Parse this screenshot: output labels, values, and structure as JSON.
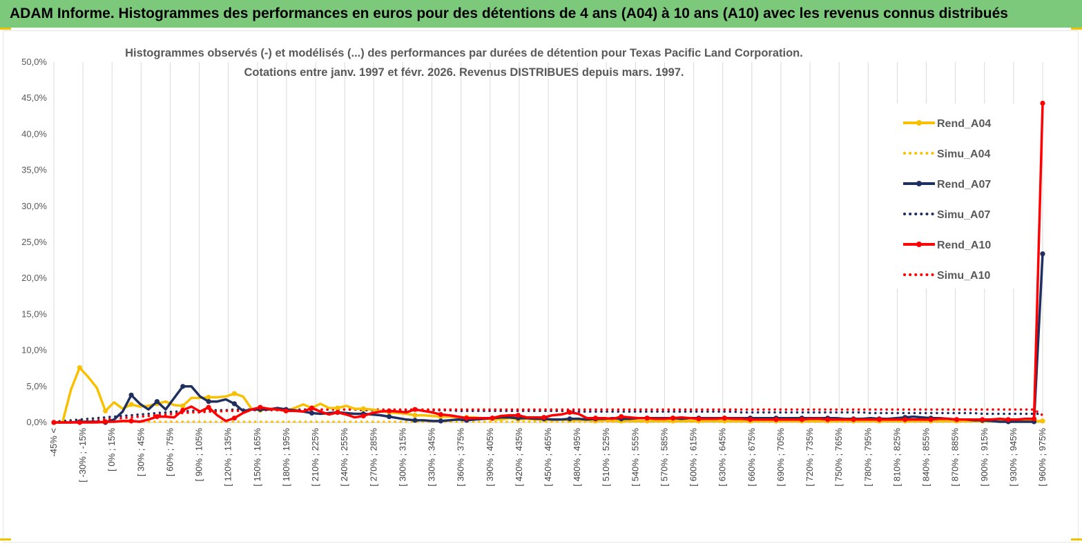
{
  "header": {
    "banner_title": "ADAM Informe. Histogrammes des performances en euros pour des détentions de 4 ans (A04) à 10 ans (A10) avec les revenus connus distribués"
  },
  "colors": {
    "banner": "#7dc97c",
    "A04": "#f8c000",
    "A07": "#1f2f5f",
    "A10": "#ff0000",
    "grid": "#d9d9d9"
  },
  "chart_data": {
    "type": "line",
    "title_lines": [
      "Histogrammes observés (-) et modélisés (...) des performances par durées de détention pour Texas Pacific Land Corporation.",
      "Cotations entre janv. 1997 et févr. 2026. Revenus DISTRIBUES depuis mars. 1997."
    ],
    "xlabel": "",
    "ylabel": "",
    "ylim": [
      0,
      50
    ],
    "y_ticks": [
      "0,0%",
      "5,0%",
      "10,0%",
      "15,0%",
      "20,0%",
      "25,0%",
      "30,0%",
      "35,0%",
      "40,0%",
      "45,0%",
      "50,0%"
    ],
    "grid": "vertical",
    "legend_position": "right",
    "x_labels": [
      "-45% <",
      "[ -30% ; -15%",
      "[ 0% ; 15%",
      "[ 30% ; 45%",
      "[ 60% ; 75%",
      "[ 90% ; 105%",
      "[ 120% ; 135%",
      "[ 150% ; 165%",
      "[ 180% ; 195%",
      "[ 210% ; 225%",
      "[ 240% ; 255%",
      "[ 270% ; 285%",
      "[ 300% ; 315%",
      "[ 330% ; 345%",
      "[ 360% ; 375%",
      "[ 390% ; 405%",
      "[ 420% ; 435%",
      "[ 450% ; 465%",
      "[ 480% ; 495%",
      "[ 510% ; 525%",
      "[ 540% ; 555%",
      "[ 570% ; 585%",
      "[ 600% ; 615%",
      "[ 630% ; 645%",
      "[ 660% ; 675%",
      "[ 690% ; 705%",
      "[ 720% ; 735%",
      "[ 750% ; 765%",
      "[ 780% ; 795%",
      "[ 810% ; 825%",
      "[ 840% ; 855%",
      "[ 870% ; 885%",
      "[ 900% ; 915%",
      "[ 930% ; 945%",
      "[ 960% ; 975%"
    ],
    "series": [
      {
        "name": "Rend_A04",
        "kind": "observed",
        "color": "#f8c000",
        "values": [
          0,
          0,
          4.6,
          7.6,
          6.3,
          4.8,
          1.6,
          2.8,
          1.9,
          2.5,
          2.2,
          2.3,
          2.6,
          2.9,
          2.4,
          2.3,
          3.4,
          3.4,
          3.5,
          3.5,
          3.6,
          4.0,
          3.6,
          1.9,
          1.7,
          1.9,
          1.8,
          1.6,
          2.0,
          2.5,
          2.0,
          2.6,
          2.0,
          2.0,
          2.3,
          1.9,
          1.9,
          1.8,
          1.6,
          1.4,
          1.3,
          1.2,
          1.0,
          1.0,
          0.9,
          0.8,
          0.8,
          0.7,
          0.7,
          0.7,
          0.5,
          0.5,
          0.4,
          0.6,
          0.4,
          0.5,
          0.4,
          0.4,
          0.3,
          0.4,
          0.3,
          0.3,
          0.3,
          0.2,
          0.3,
          0.2,
          0.2,
          0.2,
          0.2,
          0.2,
          0.2,
          0.2,
          0.2,
          0.2,
          0.2,
          0.2,
          0.2,
          0.2,
          0.2,
          0.2,
          0.2,
          0.2,
          0.2,
          0.2,
          0.2,
          0.2,
          0.2,
          0.2,
          0.2,
          0.2,
          0.2,
          0.2,
          0.2,
          0.2,
          0.2,
          0.2,
          0.2,
          0.2,
          0.2,
          0.2,
          0.2,
          0.2,
          0.2,
          0.2,
          0.2,
          0.2,
          0.2,
          0.2,
          0.2,
          0.2,
          0.2,
          0.2,
          0.2,
          0.2,
          0.2,
          0.2
        ]
      },
      {
        "name": "Simu_A04",
        "kind": "modeled",
        "color": "#f8c000",
        "values": [
          0.1,
          0.1,
          0.1,
          0.1,
          0.1,
          0.1,
          0.1,
          0.1,
          0.1,
          0.1,
          0.1,
          0.1,
          0.1,
          0.1,
          0.1,
          0.1,
          0.1,
          0.1,
          0.1,
          0.1,
          0.1,
          0.1,
          0.1,
          0.1,
          0.1,
          0.1,
          0.1,
          0.1,
          0.1,
          0.1,
          0.1,
          0.1,
          0.1,
          0.1,
          0.1,
          0.1,
          0.1,
          0.1,
          0.1,
          0.1,
          0.1,
          0.1,
          0.1,
          0.1,
          0.1,
          0.1,
          0.1,
          0.1,
          0.1,
          0.1,
          0.1,
          0.1,
          0.1,
          0.1,
          0.1,
          0.1,
          0.1,
          0.1,
          0.1,
          0.1,
          0.1,
          0.1,
          0.1,
          0.1,
          0.1,
          0.1,
          0.1,
          0.1,
          0.1,
          0.1,
          0.1,
          0.1,
          0.1,
          0.1,
          0.1,
          0.1,
          0.1,
          0.1,
          0.1,
          0.1,
          0.1,
          0.1,
          0.1,
          0.1,
          0.1,
          0.1,
          0.1,
          0.1,
          0.1,
          0.1,
          0.1,
          0.1,
          0.1,
          0.1,
          0.1,
          0.1,
          0.1,
          0.1,
          0.1,
          0.1,
          0.1,
          0.1,
          0.1,
          0.1,
          0.1,
          0.1,
          0.1,
          0.1,
          0.1,
          0.1,
          0.1,
          0.1,
          0.1,
          0.1,
          0.1,
          0.1
        ]
      },
      {
        "name": "Rend_A07",
        "kind": "observed",
        "color": "#1f2f5f",
        "values": [
          0,
          0,
          0,
          0.1,
          0.1,
          0.1,
          0,
          0.4,
          1.5,
          3.8,
          2.6,
          1.8,
          2.9,
          1.8,
          3.4,
          5.0,
          5.0,
          3.6,
          2.9,
          2.9,
          3.2,
          2.6,
          1.6,
          1.8,
          1.8,
          1.8,
          2.0,
          1.8,
          1.7,
          1.5,
          1.3,
          1.2,
          1.3,
          1.4,
          1.3,
          1.2,
          1.2,
          1.1,
          1.0,
          0.8,
          0.6,
          0.4,
          0.3,
          0.3,
          0.2,
          0.2,
          0.3,
          0.4,
          0.3,
          0.4,
          0.5,
          0.6,
          0.7,
          0.7,
          0.6,
          0.6,
          0.5,
          0.5,
          0.4,
          0.4,
          0.5,
          0.5,
          0.4,
          0.5,
          0.5,
          0.6,
          0.5,
          0.5,
          0.6,
          0.6,
          0.6,
          0.6,
          0.6,
          0.5,
          0.6,
          0.6,
          0.6,
          0.6,
          0.6,
          0.6,
          0.6,
          0.6,
          0.6,
          0.6,
          0.6,
          0.6,
          0.6,
          0.6,
          0.6,
          0.6,
          0.6,
          0.6,
          0.5,
          0.5,
          0.5,
          0.6,
          0.5,
          0.5,
          0.6,
          0.7,
          0.8,
          0.7,
          0.6,
          0.6,
          0.5,
          0.4,
          0.4,
          0.3,
          0.3,
          0.2,
          0.1,
          0.1,
          0.1,
          0.1,
          0.1,
          23.4
        ]
      },
      {
        "name": "Simu_A07",
        "kind": "modeled",
        "color": "#1f2f5f",
        "values": [
          0.1,
          0.2,
          0.3,
          0.4,
          0.5,
          0.6,
          0.7,
          0.8,
          0.9,
          1.0,
          1.1,
          1.2,
          1.3,
          1.4,
          1.5,
          1.5,
          1.6,
          1.6,
          1.7,
          1.7,
          1.7,
          1.8,
          1.8,
          1.8,
          1.8,
          1.8,
          1.8,
          1.8,
          1.8,
          1.8,
          1.8,
          1.8,
          1.8,
          1.8,
          1.8,
          1.8,
          1.7,
          1.7,
          1.7,
          1.7,
          1.7,
          1.7,
          1.7,
          1.7,
          1.7,
          1.7,
          1.7,
          1.6,
          1.6,
          1.6,
          1.6,
          1.6,
          1.6,
          1.6,
          1.6,
          1.6,
          1.6,
          1.6,
          1.6,
          1.6,
          1.6,
          1.5,
          1.5,
          1.5,
          1.5,
          1.5,
          1.5,
          1.5,
          1.5,
          1.5,
          1.5,
          1.5,
          1.5,
          1.5,
          1.5,
          1.5,
          1.5,
          1.5,
          1.5,
          1.5,
          1.4,
          1.4,
          1.4,
          1.4,
          1.4,
          1.4,
          1.4,
          1.4,
          1.4,
          1.4,
          1.4,
          1.4,
          1.4,
          1.4,
          1.4,
          1.3,
          1.3,
          1.3,
          1.3,
          1.3,
          1.3,
          1.3,
          1.3,
          1.3,
          1.3,
          1.3,
          1.3,
          1.3,
          1.2,
          1.2,
          1.2,
          1.2,
          1.2,
          1.2,
          1.2,
          1.2
        ]
      },
      {
        "name": "Rend_A10",
        "kind": "observed",
        "color": "#ff0000",
        "values": [
          0,
          0,
          0,
          0,
          0,
          0,
          0.1,
          0.1,
          0.2,
          0.2,
          0.1,
          0.4,
          0.8,
          0.8,
          0.7,
          1.7,
          2.2,
          1.5,
          2.1,
          1.0,
          0.2,
          0.6,
          1.3,
          1.8,
          2.1,
          1.9,
          1.8,
          1.6,
          1.6,
          1.5,
          2.0,
          1.5,
          1.1,
          1.4,
          1.1,
          0.7,
          0.9,
          1.3,
          1.5,
          1.6,
          1.5,
          1.4,
          1.8,
          1.6,
          1.4,
          1.1,
          1.0,
          0.8,
          0.6,
          0.6,
          0.6,
          0.6,
          0.9,
          1.0,
          1.0,
          0.7,
          0.7,
          0.7,
          1.0,
          1.1,
          1.4,
          1.2,
          0.6,
          0.6,
          0.6,
          0.5,
          0.8,
          0.7,
          0.6,
          0.6,
          0.5,
          0.5,
          0.6,
          0.7,
          0.6,
          0.5,
          0.5,
          0.5,
          0.6,
          0.5,
          0.5,
          0.4,
          0.4,
          0.4,
          0.4,
          0.4,
          0.4,
          0.4,
          0.5,
          0.5,
          0.4,
          0.4,
          0.4,
          0.4,
          0.4,
          0.4,
          0.4,
          0.4,
          0.4,
          0.4,
          0.4,
          0.4,
          0.4,
          0.5,
          0.5,
          0.4,
          0.4,
          0.4,
          0.4,
          0.4,
          0.5,
          0.4,
          0.4,
          0.5,
          0.5,
          44.3
        ]
      },
      {
        "name": "Simu_A10",
        "kind": "modeled",
        "color": "#ff0000",
        "values": [
          0.0,
          0.0,
          0.1,
          0.1,
          0.2,
          0.3,
          0.4,
          0.5,
          0.6,
          0.7,
          0.8,
          0.9,
          1.0,
          1.1,
          1.2,
          1.3,
          1.4,
          1.4,
          1.5,
          1.5,
          1.6,
          1.6,
          1.6,
          1.7,
          1.7,
          1.7,
          1.7,
          1.7,
          1.7,
          1.7,
          1.7,
          1.8,
          1.8,
          1.8,
          1.8,
          1.8,
          1.8,
          1.8,
          1.8,
          1.8,
          1.8,
          1.8,
          1.8,
          1.8,
          1.8,
          1.8,
          1.8,
          1.8,
          1.8,
          1.8,
          1.8,
          1.8,
          1.8,
          1.8,
          1.8,
          1.8,
          1.8,
          1.8,
          1.8,
          1.8,
          1.8,
          1.8,
          1.8,
          1.8,
          1.8,
          1.8,
          1.8,
          1.8,
          1.8,
          1.8,
          1.8,
          1.8,
          1.8,
          1.8,
          1.8,
          1.8,
          1.8,
          1.8,
          1.8,
          1.8,
          1.8,
          1.8,
          1.8,
          1.8,
          1.8,
          1.8,
          1.8,
          1.8,
          1.8,
          1.8,
          1.8,
          1.8,
          1.8,
          1.8,
          1.8,
          1.8,
          1.8,
          1.8,
          1.8,
          1.8,
          1.8,
          1.8,
          1.8,
          1.8,
          1.8,
          1.8,
          1.8,
          1.8,
          1.8,
          1.8,
          1.8,
          1.8,
          1.8,
          1.8,
          1.8,
          1.0
        ]
      }
    ]
  }
}
